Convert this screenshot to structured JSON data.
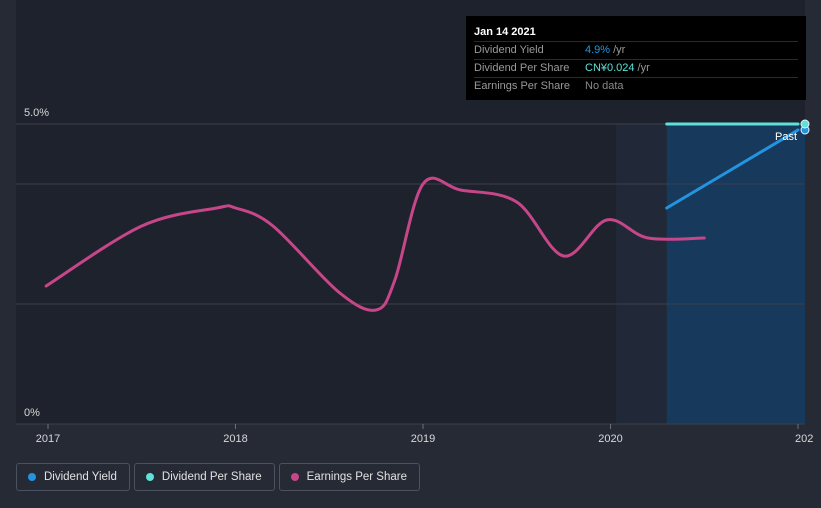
{
  "chart_data": {
    "type": "line",
    "title": "",
    "xlabel": "",
    "ylabel": "",
    "x_ticks": [
      "2017",
      "2018",
      "2019",
      "2020",
      "202"
    ],
    "y_ticks": [
      "5.0%",
      "0%"
    ],
    "ylim": [
      0,
      5.0
    ],
    "forecast_label": "Past",
    "series": [
      {
        "name": "Dividend Yield",
        "color": "#2394df",
        "points": [
          [
            2020.3,
            3.6
          ],
          [
            2021.0,
            4.9
          ]
        ]
      },
      {
        "name": "Dividend Per Share",
        "color": "#5fe0d9",
        "points": [
          [
            2020.3,
            5.0
          ],
          [
            2021.0,
            5.0
          ]
        ]
      },
      {
        "name": "Earnings Per Share",
        "color": "#c7468a",
        "points": [
          [
            2016.99,
            2.3
          ],
          [
            2017.5,
            3.3
          ],
          [
            2017.9,
            3.6
          ],
          [
            2018.0,
            3.6
          ],
          [
            2018.2,
            3.3
          ],
          [
            2018.55,
            2.2
          ],
          [
            2018.75,
            1.9
          ],
          [
            2018.85,
            2.4
          ],
          [
            2019.0,
            4.0
          ],
          [
            2019.2,
            3.9
          ],
          [
            2019.5,
            3.7
          ],
          [
            2019.75,
            2.8
          ],
          [
            2019.98,
            3.4
          ],
          [
            2020.2,
            3.1
          ],
          [
            2020.5,
            3.1
          ]
        ]
      }
    ],
    "tooltip": {
      "date": "Jan 14 2021",
      "rows": [
        {
          "label": "Dividend Yield",
          "value": "4.9%",
          "unit": "/yr",
          "color": "#2394df"
        },
        {
          "label": "Dividend Per Share",
          "value": "CN¥0.024",
          "unit": "/yr",
          "color": "#5fe0d9"
        },
        {
          "label": "Earnings Per Share",
          "value": "No data",
          "unit": "",
          "color": "#8a8a8a"
        }
      ]
    }
  },
  "legend": [
    {
      "label": "Dividend Yield",
      "color": "#2394df"
    },
    {
      "label": "Dividend Per Share",
      "color": "#5fe0d9"
    },
    {
      "label": "Earnings Per Share",
      "color": "#c7468a"
    }
  ]
}
